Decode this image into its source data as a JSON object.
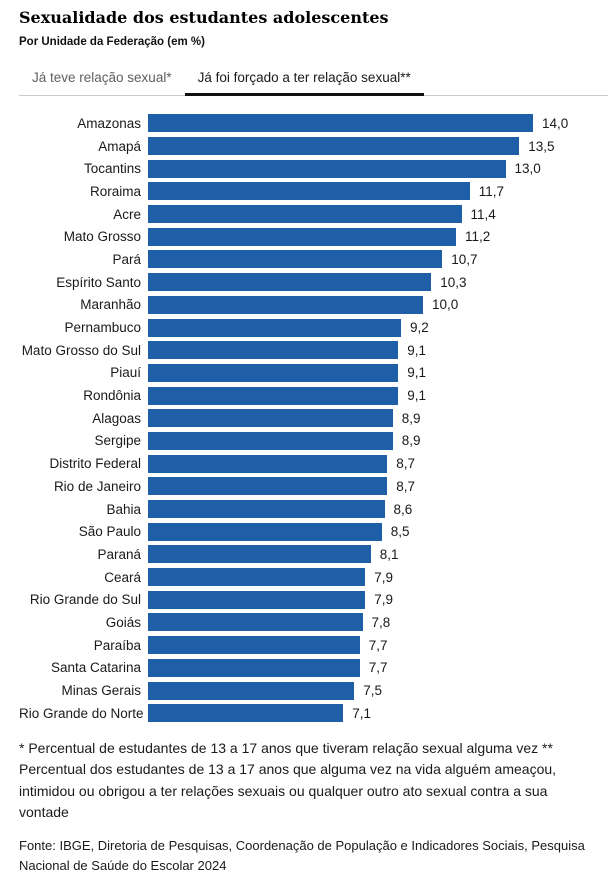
{
  "header": {
    "title": "Sexualidade dos estudantes adolescentes",
    "subtitle": "Por Unidade da Federação (em %)"
  },
  "tabs": [
    {
      "label": "Já teve relação sexual*",
      "active": false
    },
    {
      "label": "Já foi forçado a ter relação sexual**",
      "active": true
    }
  ],
  "chart_data": {
    "type": "bar",
    "orientation": "horizontal",
    "title": "Sexualidade dos estudantes adolescentes",
    "subtitle": "Por Unidade da Federação (em %)",
    "active_series": "Já foi forçado a ter relação sexual**",
    "categories": [
      "Amazonas",
      "Amapá",
      "Tocantins",
      "Roraima",
      "Acre",
      "Mato Grosso",
      "Pará",
      "Espírito Santo",
      "Maranhão",
      "Pernambuco",
      "Mato Grosso do Sul",
      "Piauí",
      "Rondônia",
      "Alagoas",
      "Sergipe",
      "Distrito Federal",
      "Rio de Janeiro",
      "Bahia",
      "São Paulo",
      "Paraná",
      "Ceará",
      "Rio Grande do Sul",
      "Goiás",
      "Paraíba",
      "Santa Catarina",
      "Minas Gerais",
      "Rio Grande do Norte"
    ],
    "values": [
      14.0,
      13.5,
      13.0,
      11.7,
      11.4,
      11.2,
      10.7,
      10.3,
      10.0,
      9.2,
      9.1,
      9.1,
      9.1,
      8.9,
      8.9,
      8.7,
      8.7,
      8.6,
      8.5,
      8.1,
      7.9,
      7.9,
      7.8,
      7.7,
      7.7,
      7.5,
      7.1
    ],
    "value_labels": [
      "14,0",
      "13,5",
      "13,0",
      "11,7",
      "11,4",
      "11,2",
      "10,7",
      "10,3",
      "10,0",
      "9,2",
      "9,1",
      "9,1",
      "9,1",
      "8,9",
      "8,9",
      "8,7",
      "8,7",
      "8,6",
      "8,5",
      "8,1",
      "7,9",
      "7,9",
      "7,8",
      "7,7",
      "7,7",
      "7,5",
      "7,1"
    ],
    "xlim": [
      0,
      14
    ],
    "grid": false,
    "legend": false,
    "bar_color": "#1f5fa8"
  },
  "footnote": {
    "text": "* Percentual de estudantes de 13 a 17 anos que tiveram relação sexual alguma vez ** Percentual dos estudantes de 13 a 17 anos que alguma vez na vida alguém ameaçou, intimidou ou obrigou a ter relações sexuais ou qualquer outro ato sexual contra a sua vontade"
  },
  "source": {
    "text": "Fonte: IBGE, Diretoria de Pesquisas, Coordenação de População e Indicadores Sociais, Pesquisa Nacional de Saúde do Escolar 2024"
  },
  "colors": {
    "bar": "#1f5fa8",
    "active_tab_underline": "#111111",
    "divider": "#c9c9c9",
    "inactive_tab_text": "#5f5f5f",
    "text": "#1a1a1a"
  }
}
